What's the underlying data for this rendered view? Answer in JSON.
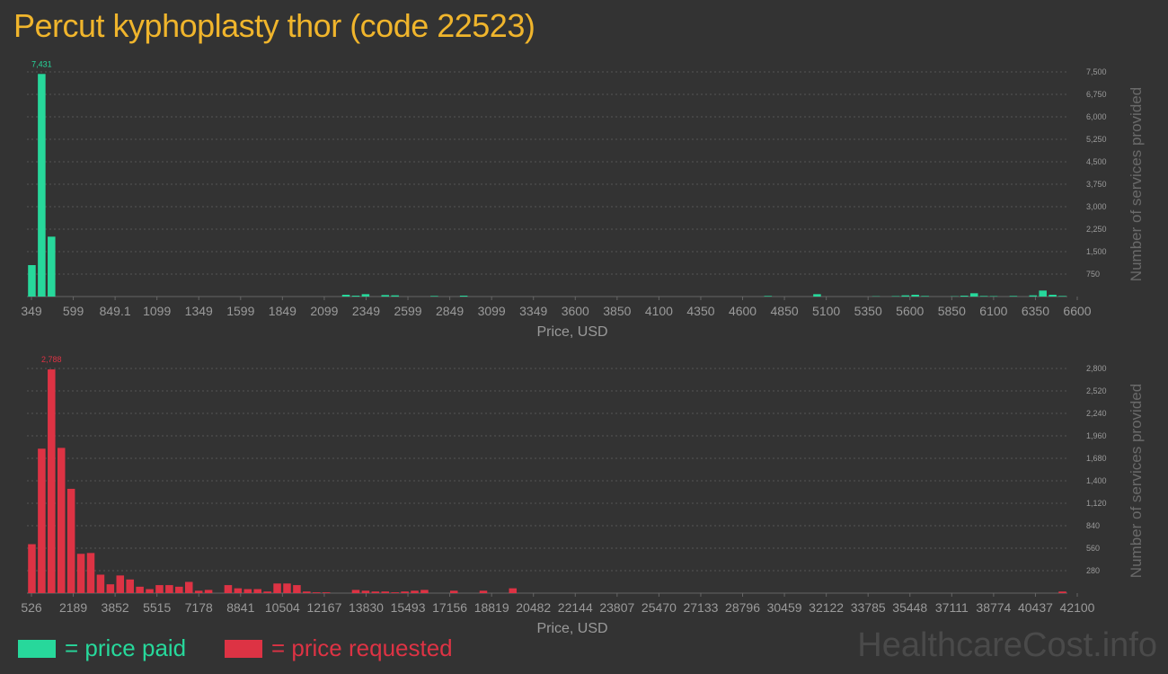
{
  "title": "Percut kyphoplasty thor (code 22523)",
  "colors": {
    "paid": "#27d89b",
    "requested": "#dd3344",
    "title": "#f0b52c",
    "axis_text": "#9a9a9a",
    "grid": "#555555"
  },
  "legend": {
    "paid_label": "= price paid",
    "requested_label": "= price requested"
  },
  "watermark": "HealthcareCost.info",
  "chart_data": [
    {
      "type": "bar",
      "name": "paid",
      "xlabel": "Price, USD",
      "ylabel": "Number of services provided",
      "xticks": [
        "349",
        "599",
        "849.1",
        "1099",
        "1349",
        "1599",
        "1849",
        "2099",
        "2349",
        "2599",
        "2849",
        "3099",
        "3349",
        "3600",
        "3850",
        "4100",
        "4350",
        "4600",
        "4850",
        "5100",
        "5350",
        "5600",
        "5850",
        "6100",
        "6350",
        "6600"
      ],
      "ylim": [
        0,
        7500
      ],
      "yticks": [
        750,
        1500,
        2250,
        3000,
        3750,
        4500,
        5250,
        6000,
        6750,
        7500
      ],
      "ytick_labels": [
        "750",
        "1,500",
        "2,250",
        "3,000",
        "3,750",
        "4,500",
        "5,250",
        "6,000",
        "6,750",
        "7,500"
      ],
      "peak_label": "7,431",
      "peak_index": 1,
      "values": [
        1050,
        7431,
        2000,
        0,
        0,
        0,
        0,
        0,
        0,
        0,
        0,
        0,
        0,
        0,
        0,
        0,
        0,
        0,
        0,
        0,
        0,
        0,
        0,
        0,
        0,
        0,
        0,
        0,
        0,
        0,
        0,
        0,
        60,
        30,
        80,
        0,
        50,
        40,
        0,
        0,
        0,
        20,
        0,
        0,
        30,
        0,
        0,
        0,
        0,
        0,
        0,
        0,
        0,
        0,
        0,
        0,
        0,
        0,
        0,
        0,
        0,
        0,
        0,
        0,
        0,
        0,
        0,
        0,
        0,
        0,
        0,
        0,
        0,
        0,
        0,
        20,
        0,
        0,
        0,
        0,
        80,
        0,
        0,
        0,
        0,
        0,
        10,
        0,
        15,
        40,
        60,
        20,
        0,
        0,
        10,
        30,
        110,
        20,
        15,
        0,
        20,
        0,
        40,
        200,
        60,
        20
      ]
    },
    {
      "type": "bar",
      "name": "requested",
      "xlabel": "Price, USD",
      "ylabel": "Number of services provided",
      "xticks": [
        "526",
        "2189",
        "3852",
        "5515",
        "7178",
        "8841",
        "10504",
        "12167",
        "13830",
        "15493",
        "17156",
        "18819",
        "20482",
        "22144",
        "23807",
        "25470",
        "27133",
        "28796",
        "30459",
        "32122",
        "33785",
        "35448",
        "37111",
        "38774",
        "40437",
        "42100"
      ],
      "ylim": [
        0,
        2800
      ],
      "yticks": [
        280,
        560,
        840,
        1120,
        1400,
        1680,
        1960,
        2240,
        2520,
        2800
      ],
      "ytick_labels": [
        "280",
        "560",
        "840",
        "1,120",
        "1,400",
        "1,680",
        "1,960",
        "2,240",
        "2,520",
        "2,800"
      ],
      "peak_label": "2,788",
      "peak_index": 2,
      "values": [
        610,
        1800,
        2788,
        1810,
        1300,
        490,
        500,
        230,
        110,
        220,
        170,
        80,
        50,
        100,
        100,
        80,
        140,
        30,
        40,
        0,
        100,
        60,
        50,
        50,
        20,
        120,
        120,
        100,
        20,
        10,
        10,
        0,
        0,
        40,
        30,
        20,
        20,
        10,
        20,
        30,
        40,
        0,
        0,
        30,
        0,
        0,
        30,
        0,
        0,
        60,
        0,
        0,
        0,
        0,
        0,
        0,
        0,
        0,
        0,
        0,
        0,
        0,
        0,
        0,
        0,
        0,
        0,
        0,
        0,
        0,
        0,
        0,
        0,
        0,
        0,
        0,
        0,
        0,
        0,
        0,
        0,
        0,
        0,
        0,
        0,
        0,
        0,
        0,
        0,
        0,
        0,
        0,
        0,
        0,
        0,
        0,
        0,
        0,
        0,
        0,
        0,
        0,
        0,
        0,
        0,
        20
      ]
    }
  ]
}
